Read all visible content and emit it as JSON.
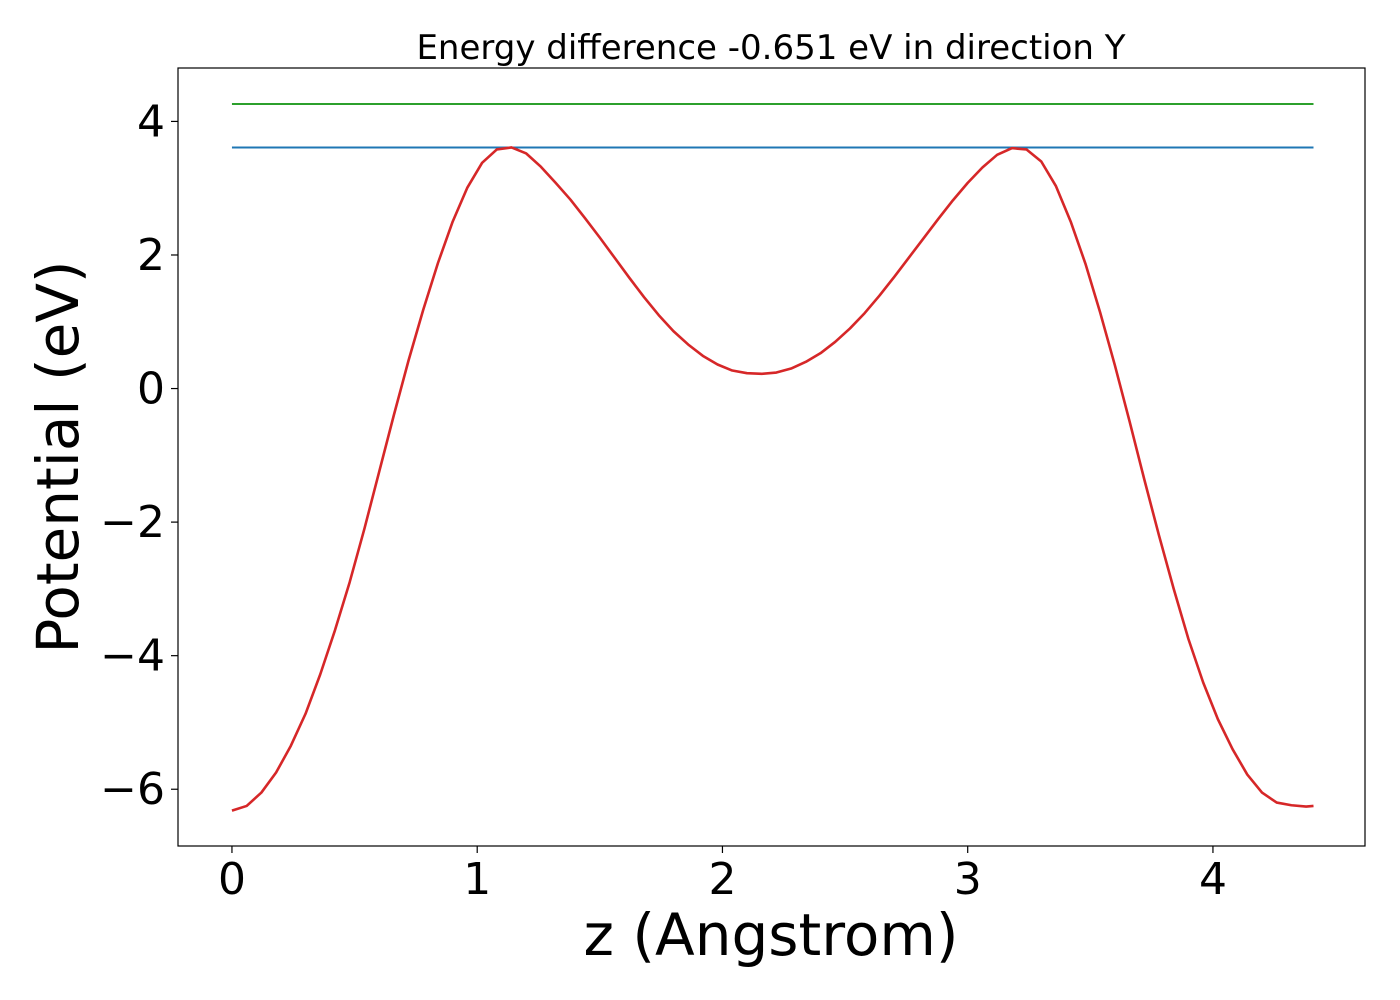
{
  "chart_data": {
    "type": "line",
    "title": "Energy difference -0.651 eV in direction Y",
    "xlabel": "z (Angstrom)",
    "ylabel": "Potential (eV)",
    "xlim": [
      -0.22,
      4.62
    ],
    "ylim": [
      -6.85,
      4.8
    ],
    "xticks": [
      0,
      1,
      2,
      3,
      4
    ],
    "yticks": [
      -6,
      -4,
      -2,
      0,
      2,
      4
    ],
    "xtick_labels": [
      "0",
      "1",
      "2",
      "3",
      "4"
    ],
    "ytick_labels": [
      "−6",
      "−4",
      "−2",
      "0",
      "2",
      "4"
    ],
    "grid": false,
    "legend": "none",
    "series": [
      {
        "name": "level-green",
        "color": "#2ca02c",
        "x": [
          0,
          4.41
        ],
        "y": [
          4.26,
          4.26
        ]
      },
      {
        "name": "level-blue",
        "color": "#1f77b4",
        "x": [
          0,
          4.41
        ],
        "y": [
          3.61,
          3.61
        ]
      },
      {
        "name": "potential",
        "color": "#d62728",
        "x": [
          0,
          0.06,
          0.12,
          0.18,
          0.24,
          0.3,
          0.36,
          0.42,
          0.48,
          0.54,
          0.6,
          0.66,
          0.72,
          0.78,
          0.84,
          0.9,
          0.96,
          1.02,
          1.08,
          1.14,
          1.2,
          1.26,
          1.32,
          1.38,
          1.44,
          1.5,
          1.56,
          1.62,
          1.68,
          1.74,
          1.8,
          1.86,
          1.92,
          1.98,
          2.04,
          2.1,
          2.16,
          2.22,
          2.28,
          2.34,
          2.4,
          2.46,
          2.52,
          2.58,
          2.64,
          2.7,
          2.76,
          2.82,
          2.88,
          2.94,
          3.0,
          3.06,
          3.12,
          3.18,
          3.24,
          3.3,
          3.36,
          3.42,
          3.48,
          3.54,
          3.6,
          3.66,
          3.72,
          3.78,
          3.84,
          3.9,
          3.96,
          4.02,
          4.08,
          4.14,
          4.2,
          4.26,
          4.32,
          4.38,
          4.41
        ],
        "y": [
          -6.32,
          -6.25,
          -6.05,
          -5.75,
          -5.35,
          -4.87,
          -4.28,
          -3.62,
          -2.9,
          -2.1,
          -1.25,
          -0.4,
          0.42,
          1.18,
          1.88,
          2.5,
          3.01,
          3.38,
          3.58,
          3.61,
          3.52,
          3.32,
          3.08,
          2.83,
          2.55,
          2.26,
          1.96,
          1.66,
          1.37,
          1.1,
          0.86,
          0.66,
          0.49,
          0.36,
          0.27,
          0.23,
          0.22,
          0.24,
          0.3,
          0.4,
          0.53,
          0.7,
          0.9,
          1.13,
          1.39,
          1.67,
          1.96,
          2.25,
          2.54,
          2.82,
          3.08,
          3.31,
          3.5,
          3.6,
          3.58,
          3.4,
          3.03,
          2.5,
          1.87,
          1.14,
          0.35,
          -0.49,
          -1.36,
          -2.2,
          -3.0,
          -3.75,
          -4.4,
          -4.95,
          -5.4,
          -5.78,
          -6.05,
          -6.2,
          -6.24,
          -6.26,
          -6.25
        ]
      }
    ]
  }
}
